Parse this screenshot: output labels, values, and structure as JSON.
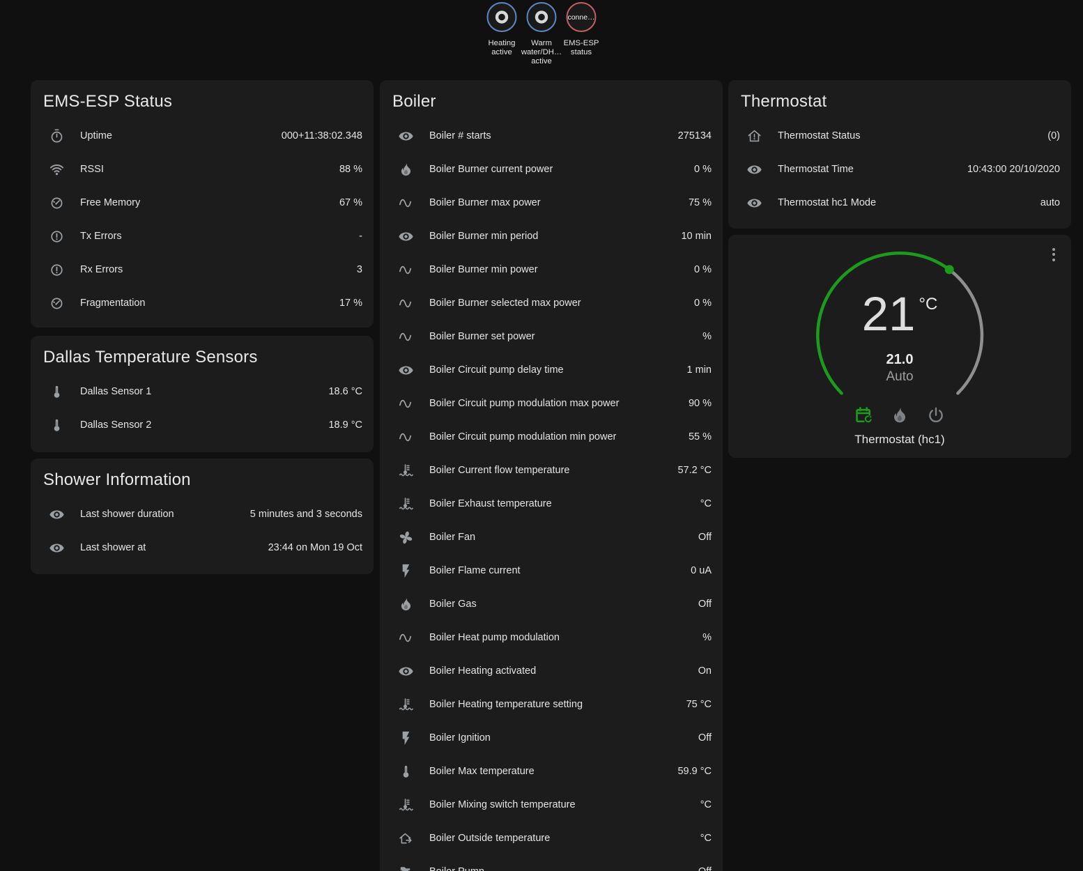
{
  "colors": {
    "accent_green": "#1d9b1d",
    "badge_border_blue": "#5d87c3",
    "badge_border_red": "#c26060",
    "arc_inactive": "#8f8f8f"
  },
  "badges": [
    {
      "id": "heating-active",
      "style": "",
      "content": "ring",
      "lines": [
        "Heating",
        "active"
      ]
    },
    {
      "id": "warm-water-dhw-active",
      "style": "",
      "content": "ring",
      "lines": [
        "Warm",
        "water/DH…",
        "active"
      ]
    },
    {
      "id": "ems-esp-status",
      "style": "red",
      "content": "text",
      "text": "conne…",
      "lines": [
        "EMS-ESP",
        "status"
      ]
    }
  ],
  "cards": {
    "ems_status": {
      "title": "EMS-ESP Status",
      "rows": [
        {
          "icon": "timer",
          "label": "Uptime",
          "value": "000+11:38:02.348"
        },
        {
          "icon": "wifi",
          "label": "RSSI",
          "value": "88 %"
        },
        {
          "icon": "gauge",
          "label": "Free Memory",
          "value": "67 %"
        },
        {
          "icon": "alert-circle",
          "label": "Tx Errors",
          "value": "-"
        },
        {
          "icon": "alert-circle",
          "label": "Rx Errors",
          "value": "3"
        },
        {
          "icon": "gauge",
          "label": "Fragmentation",
          "value": "17 %"
        }
      ]
    },
    "dallas": {
      "title": "Dallas Temperature Sensors",
      "rows": [
        {
          "icon": "thermometer",
          "label": "Dallas Sensor 1",
          "value": "18.6 °C"
        },
        {
          "icon": "thermometer",
          "label": "Dallas Sensor 2",
          "value": "18.9 °C"
        }
      ]
    },
    "shower": {
      "title": "Shower Information",
      "rows": [
        {
          "icon": "eye",
          "label": "Last shower duration",
          "value": "5 minutes and 3 seconds"
        },
        {
          "icon": "eye",
          "label": "Last shower at",
          "value": "23:44 on Mon 19 Oct"
        }
      ]
    },
    "boiler": {
      "title": "Boiler",
      "rows": [
        {
          "icon": "eye",
          "label": "Boiler # starts",
          "value": "275134"
        },
        {
          "icon": "fire",
          "label": "Boiler Burner current power",
          "value": "0 %"
        },
        {
          "icon": "sine-wave",
          "label": "Boiler Burner max power",
          "value": "75 %"
        },
        {
          "icon": "eye",
          "label": "Boiler Burner min period",
          "value": "10 min"
        },
        {
          "icon": "sine-wave",
          "label": "Boiler Burner min power",
          "value": "0 %"
        },
        {
          "icon": "sine-wave",
          "label": "Boiler Burner selected max power",
          "value": "0 %"
        },
        {
          "icon": "sine-wave",
          "label": "Boiler Burner set power",
          "value": "%"
        },
        {
          "icon": "eye",
          "label": "Boiler Circuit pump delay time",
          "value": "1 min"
        },
        {
          "icon": "sine-wave",
          "label": "Boiler Circuit pump modulation max power",
          "value": "90 %"
        },
        {
          "icon": "sine-wave",
          "label": "Boiler Circuit pump modulation min power",
          "value": "55 %"
        },
        {
          "icon": "coolant-temperature",
          "label": "Boiler Current flow temperature",
          "value": "57.2 °C"
        },
        {
          "icon": "coolant-temperature",
          "label": "Boiler Exhaust temperature",
          "value": "°C"
        },
        {
          "icon": "fan",
          "label": "Boiler Fan",
          "value": "Off"
        },
        {
          "icon": "flash",
          "label": "Boiler Flame current",
          "value": "0 uA"
        },
        {
          "icon": "fire",
          "label": "Boiler Gas",
          "value": "Off"
        },
        {
          "icon": "sine-wave",
          "label": "Boiler Heat pump modulation",
          "value": "%"
        },
        {
          "icon": "eye",
          "label": "Boiler Heating activated",
          "value": "On"
        },
        {
          "icon": "coolant-temperature",
          "label": "Boiler Heating temperature setting",
          "value": "75 °C"
        },
        {
          "icon": "flash",
          "label": "Boiler Ignition",
          "value": "Off"
        },
        {
          "icon": "thermometer",
          "label": "Boiler Max temperature",
          "value": "59.9 °C"
        },
        {
          "icon": "coolant-temperature",
          "label": "Boiler Mixing switch temperature",
          "value": "°C"
        },
        {
          "icon": "home-export",
          "label": "Boiler Outside temperature",
          "value": "°C"
        },
        {
          "icon": "pump",
          "label": "Boiler Pump",
          "value": "Off"
        }
      ]
    },
    "thermostat": {
      "title": "Thermostat",
      "rows": [
        {
          "icon": "home-alert",
          "label": "Thermostat Status",
          "value": "(0)"
        },
        {
          "icon": "eye",
          "label": "Thermostat Time",
          "value": "10:43:00 20/10/2020"
        },
        {
          "icon": "eye",
          "label": "Thermostat hc1 Mode",
          "value": "auto"
        }
      ]
    },
    "dial": {
      "current": "21",
      "unit": "°C",
      "target": "21.0",
      "mode": "Auto",
      "name": "Thermostat (hc1)",
      "mode_icons": [
        {
          "icon": "calendar-sync",
          "active": true
        },
        {
          "icon": "fire",
          "active": false
        },
        {
          "icon": "power",
          "active": false
        }
      ]
    }
  }
}
